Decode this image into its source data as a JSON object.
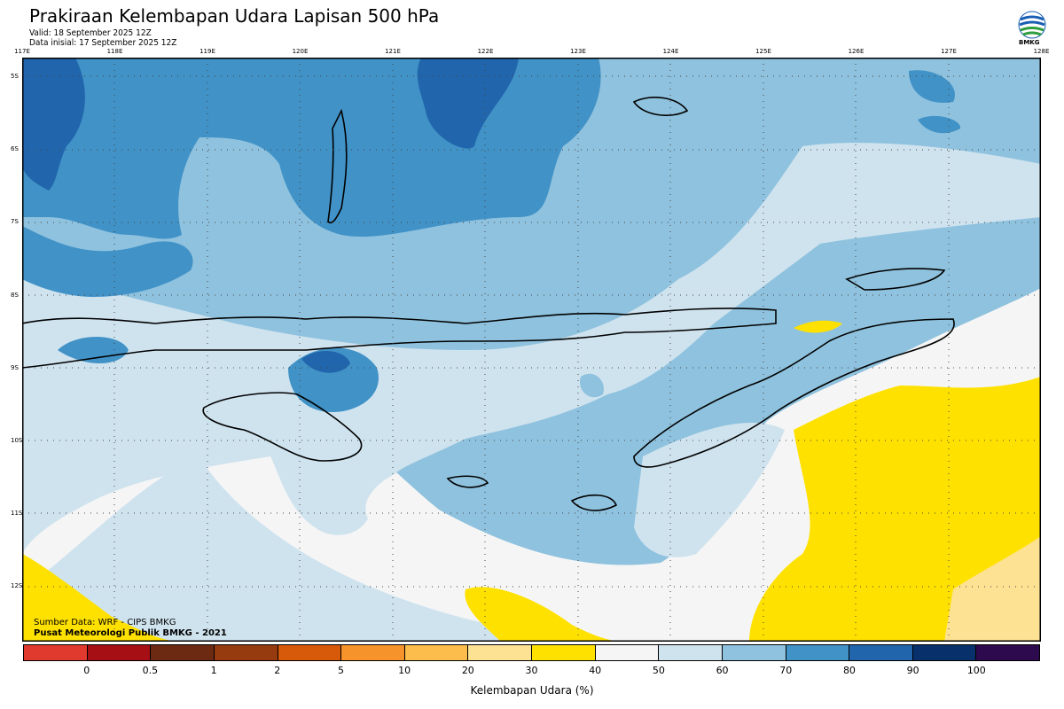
{
  "header": {
    "title": "Prakiraan Kelembapan Udara Lapisan 500 hPa",
    "valid": "Valid: 18 September 2025 12Z",
    "init": "Data inisial: 17 September 2025 12Z"
  },
  "logo": {
    "text": "BMKG",
    "icon": "bmkg-logo-icon"
  },
  "axes": {
    "lon_labels": [
      "117E",
      "118E",
      "119E",
      "120E",
      "121E",
      "122E",
      "123E",
      "124E",
      "125E",
      "126E",
      "127E",
      "128E"
    ],
    "lat_labels": [
      "5S",
      "6S",
      "7S",
      "8S",
      "9S",
      "10S",
      "11S",
      "12S"
    ]
  },
  "footer": {
    "source": "Sumber Data: WRF - CIPS BMKG",
    "credit": "Pusat Meteorologi Publik BMKG - 2021"
  },
  "colorbar": {
    "title": "Kelembapan Udara (%)",
    "labels": [
      "0",
      "0.5",
      "1",
      "2",
      "5",
      "10",
      "20",
      "30",
      "40",
      "50",
      "60",
      "70",
      "80",
      "90",
      "100"
    ],
    "colors": [
      "#e03a2e",
      "#a60f14",
      "#6d2a12",
      "#963a10",
      "#d65a0a",
      "#f7932b",
      "#fdbd4c",
      "#fde293",
      "#ffe100",
      "#f5f5f5",
      "#cfe3ef",
      "#8fc2de",
      "#4192c7",
      "#2166ac",
      "#08306b",
      "#2d0a4e"
    ]
  },
  "palette": {
    "light": "#cfe3ef",
    "medium": "#8fc2de",
    "strong": "#4192c7",
    "deep": "#2166ac",
    "dry": "#f5f5f5",
    "yellow": "#ffe100",
    "pale_yellow": "#fde293"
  }
}
